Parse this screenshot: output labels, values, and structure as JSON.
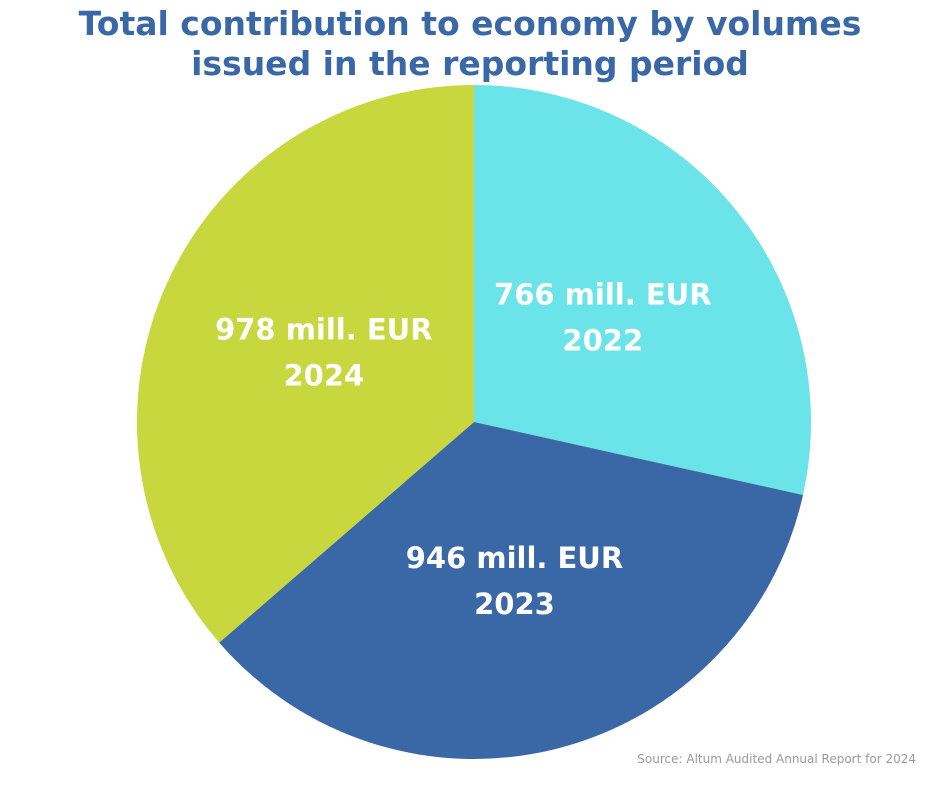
{
  "title_lines": [
    "Total contribution to economy by volumes",
    "issued in the reporting period"
  ],
  "source": "Source: Altum Audited Annual Report for 2024",
  "chart_data": {
    "type": "pie",
    "title": "Total contribution to economy by volumes issued in the reporting period",
    "unit": "mill. EUR",
    "slices": [
      {
        "label": "2022",
        "value": 766,
        "value_text": "766 mill. EUR",
        "color": "#6ae4e8"
      },
      {
        "label": "2023",
        "value": 946,
        "value_text": "946 mill. EUR",
        "color": "#3a67a6"
      },
      {
        "label": "2024",
        "value": 978,
        "value_text": "978 mill. EUR",
        "color": "#c8d73e"
      }
    ]
  }
}
